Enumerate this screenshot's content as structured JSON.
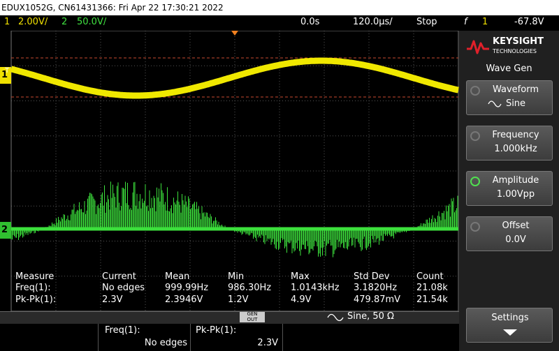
{
  "header": {
    "title": "EDUX1052G, CN61431366: Fri Apr 22 17:30:21 2022"
  },
  "status": {
    "ch1_label": "1",
    "ch1_scale": "2.00V/",
    "ch2_label": "2",
    "ch2_scale": "50.0V/",
    "time_delay": "0.0s",
    "time_scale": "120.0µs/",
    "run_state": "Stop",
    "trigger_icon": "f",
    "trigger_source": "1",
    "trigger_level": "-67.8V"
  },
  "markers": {
    "trigger": "T",
    "ch1": "1",
    "ch2": "2"
  },
  "logo": {
    "brand": "KEYSIGHT",
    "sub": "TECHNOLOGIES"
  },
  "menu": {
    "title": "Wave Gen",
    "buttons": [
      {
        "label": "Waveform",
        "value": "Sine"
      },
      {
        "label": "Frequency",
        "value": "1.000kHz"
      },
      {
        "label": "Amplitude",
        "value": "1.00Vpp"
      },
      {
        "label": "Offset",
        "value": "0.0V"
      }
    ],
    "settings": "Settings"
  },
  "measure": {
    "headers": [
      "Measure",
      "Current",
      "Mean",
      "Min",
      "Max",
      "Std Dev",
      "Count"
    ],
    "rows": [
      [
        "Freq(1):",
        "No edges",
        "999.99Hz",
        "986.30Hz",
        "1.0143kHz",
        "3.1820Hz",
        "21.08k"
      ],
      [
        "Pk-Pk(1):",
        "2.3V",
        "2.3946V",
        "1.2V",
        "4.9V",
        "479.87mV",
        "21.54k"
      ]
    ]
  },
  "gen_bar": {
    "badge_top": "GEN",
    "badge_bottom": "OUT",
    "signal": "Sine, 50 Ω"
  },
  "footer": [
    {
      "label": "Freq(1):",
      "value": "No edges"
    },
    {
      "label": "Pk-Pk(1):",
      "value": "2.3V"
    }
  ]
}
